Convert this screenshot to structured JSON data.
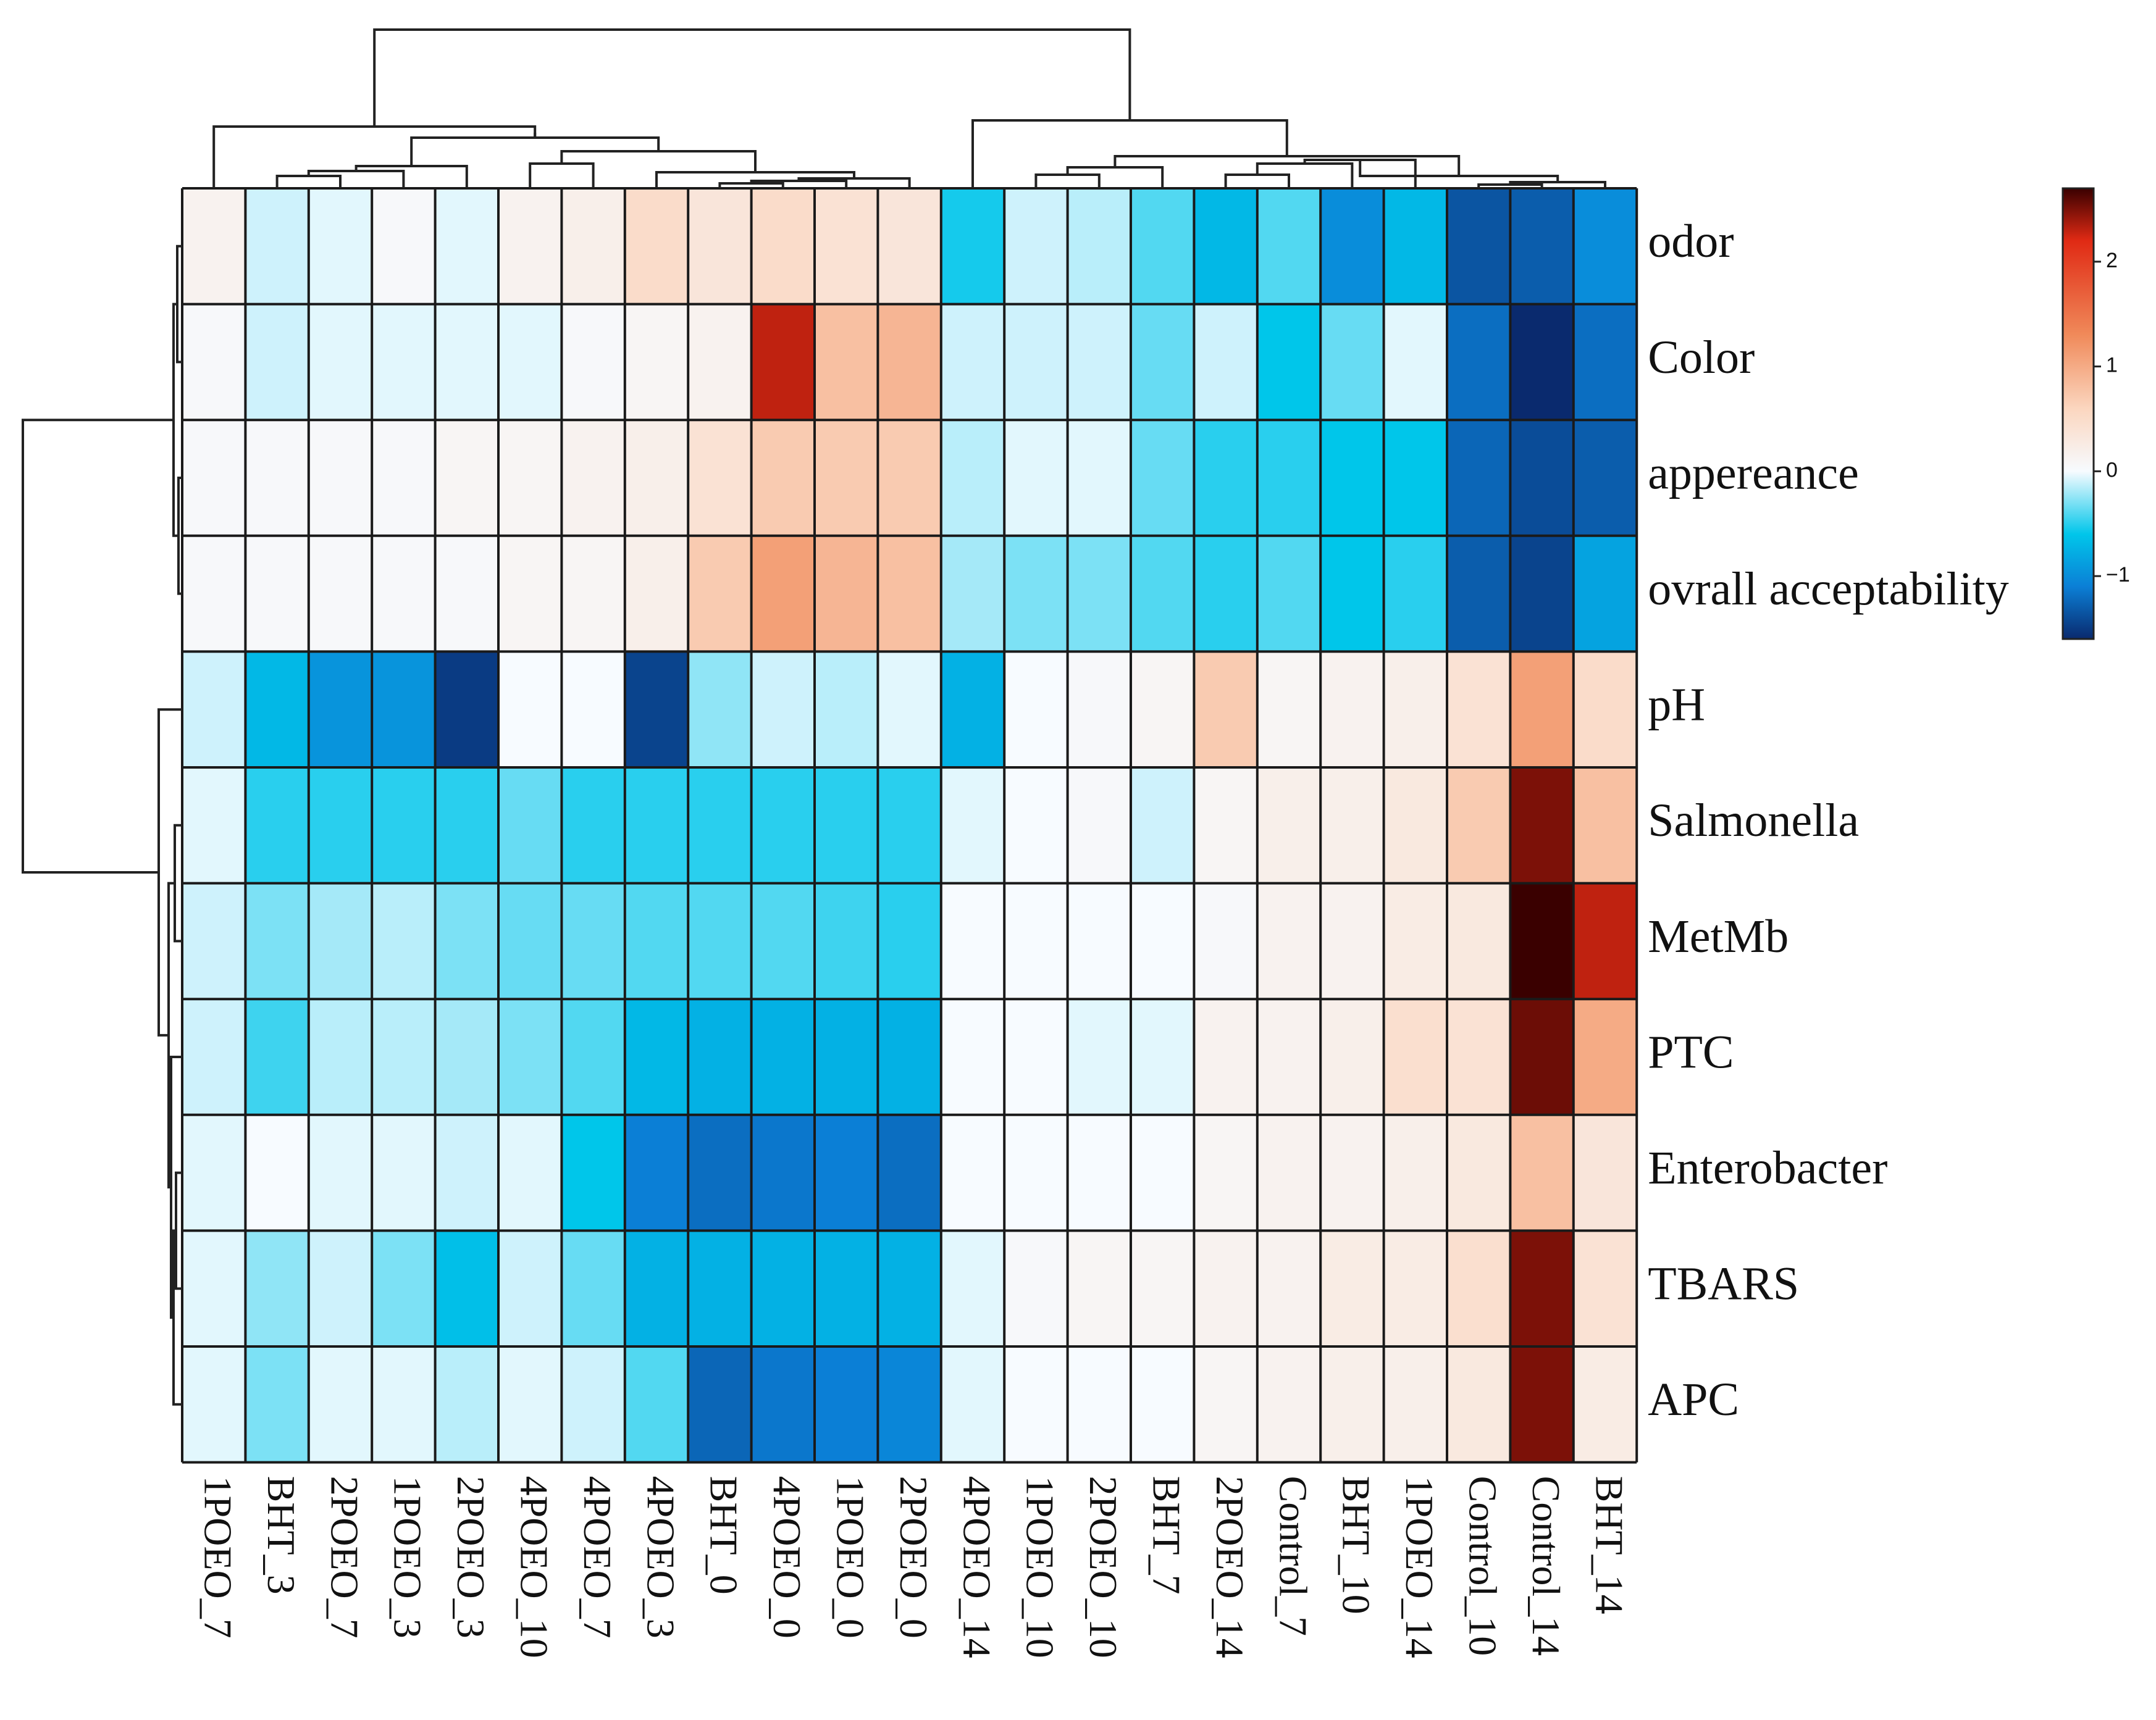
{
  "chart_data": {
    "type": "heatmap",
    "title": "",
    "columns": [
      "1POEO_7",
      "BHT_3",
      "2POEO_7",
      "1POEO_3",
      "2POEO_3",
      "4POEO_10",
      "4POEO_7",
      "4POEO_3",
      "BHT_0",
      "4POEO_0",
      "1POEO_0",
      "2POEO_0",
      "4POEO_14",
      "1POEO_10",
      "2POEO_10",
      "BHT_7",
      "2POEO_14",
      "Control_7",
      "BHT_10",
      "1POEO_14",
      "Control_10",
      "Control_14",
      "BHT_14"
    ],
    "rows": [
      "odor",
      "Color",
      "appereance",
      "ovrall acceptability",
      "pH",
      "Salmonella",
      "MetMb",
      "PTC",
      "Enterobacter",
      "TBARS",
      "APC"
    ],
    "values": [
      [
        0.15,
        -0.1,
        -0.05,
        0.05,
        -0.05,
        0.15,
        0.2,
        0.5,
        0.35,
        0.5,
        0.4,
        0.35,
        -0.55,
        -0.1,
        -0.15,
        -0.4,
        -0.7,
        -0.4,
        -1.0,
        -0.7,
        -1.35,
        -1.3,
        -1.0
      ],
      [
        0.05,
        -0.1,
        -0.05,
        -0.05,
        -0.05,
        -0.05,
        0.05,
        0.1,
        0.15,
        2.3,
        0.8,
        0.9,
        -0.1,
        -0.1,
        -0.1,
        -0.35,
        -0.1,
        -0.6,
        -0.35,
        -0.05,
        -1.2,
        -1.6,
        -1.2
      ],
      [
        0.05,
        0.05,
        0.05,
        0.05,
        0.1,
        0.1,
        0.15,
        0.2,
        0.4,
        0.7,
        0.7,
        0.7,
        -0.15,
        -0.05,
        -0.05,
        -0.35,
        -0.5,
        -0.5,
        -0.6,
        -0.6,
        -1.25,
        -1.4,
        -1.3
      ],
      [
        0.05,
        0.05,
        0.05,
        0.05,
        0.05,
        0.1,
        0.1,
        0.2,
        0.7,
        1.1,
        0.9,
        0.8,
        -0.2,
        -0.3,
        -0.3,
        -0.4,
        -0.5,
        -0.4,
        -0.6,
        -0.5,
        -1.3,
        -1.45,
        -0.85
      ],
      [
        -0.1,
        -0.7,
        -0.95,
        -0.95,
        -1.5,
        0.0,
        0.0,
        -1.45,
        -0.25,
        -0.1,
        -0.15,
        -0.05,
        -0.75,
        0.0,
        0.05,
        0.1,
        0.7,
        0.1,
        0.15,
        0.2,
        0.4,
        1.1,
        0.5
      ],
      [
        -0.05,
        -0.5,
        -0.5,
        -0.5,
        -0.5,
        -0.35,
        -0.5,
        -0.5,
        -0.5,
        -0.5,
        -0.5,
        -0.5,
        -0.05,
        0.0,
        0.05,
        -0.1,
        0.1,
        0.2,
        0.2,
        0.3,
        0.7,
        2.5,
        0.8
      ],
      [
        -0.1,
        -0.3,
        -0.2,
        -0.15,
        -0.3,
        -0.35,
        -0.35,
        -0.4,
        -0.4,
        -0.4,
        -0.45,
        -0.5,
        0.0,
        0.0,
        0.0,
        0.0,
        0.05,
        0.15,
        0.15,
        0.25,
        0.3,
        2.7,
        2.3
      ],
      [
        -0.1,
        -0.45,
        -0.15,
        -0.15,
        -0.2,
        -0.3,
        -0.4,
        -0.7,
        -0.75,
        -0.75,
        -0.75,
        -0.75,
        0.0,
        0.0,
        -0.05,
        -0.05,
        0.15,
        0.15,
        0.2,
        0.45,
        0.4,
        2.55,
        1.0
      ],
      [
        -0.05,
        0.0,
        -0.05,
        -0.05,
        -0.1,
        -0.05,
        -0.6,
        -1.1,
        -1.2,
        -1.15,
        -1.1,
        -1.2,
        0.0,
        0.0,
        0.0,
        0.0,
        0.1,
        0.15,
        0.15,
        0.2,
        0.3,
        0.8,
        0.35
      ],
      [
        -0.05,
        -0.25,
        -0.1,
        -0.3,
        -0.65,
        -0.1,
        -0.35,
        -0.75,
        -0.75,
        -0.75,
        -0.75,
        -0.75,
        -0.05,
        0.05,
        0.1,
        0.1,
        0.15,
        0.15,
        0.25,
        0.25,
        0.45,
        2.5,
        0.4
      ],
      [
        -0.05,
        -0.3,
        -0.05,
        -0.05,
        -0.15,
        -0.05,
        -0.1,
        -0.4,
        -1.25,
        -1.15,
        -1.1,
        -1.05,
        -0.05,
        0.0,
        0.0,
        0.0,
        0.1,
        0.15,
        0.2,
        0.2,
        0.3,
        2.5,
        0.25
      ]
    ],
    "colorbar": {
      "min": -1.6,
      "max": 2.7,
      "ticks": [
        2,
        1,
        0,
        -1
      ],
      "tick_labels": [
        "2",
        "1",
        "0",
        "−1"
      ]
    },
    "colors": {
      "low": "#0a2a6e",
      "mid_low": "#0b7fd6",
      "light_low": "#00c6ea",
      "neutral": "#f7fbff",
      "light_high": "#fbd6bf",
      "mid_high": "#f08a5a",
      "high": "#e02a14",
      "max": "#3a0000"
    },
    "column_dendrogram": true,
    "row_dendrogram": true,
    "legend": "right"
  }
}
